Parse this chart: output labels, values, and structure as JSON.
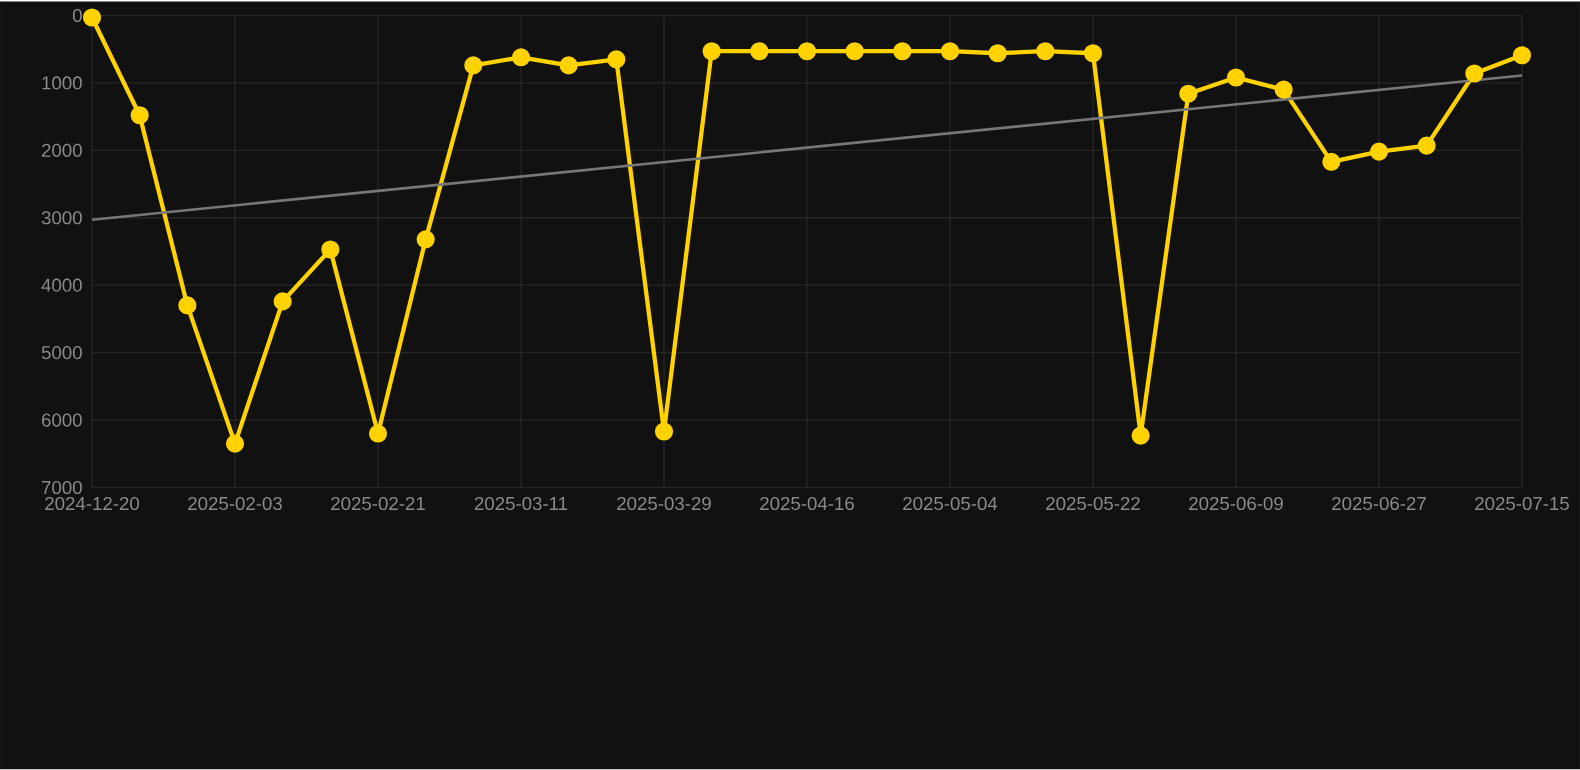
{
  "chart_data": {
    "type": "line",
    "categories": [
      "2024-12-20",
      null,
      null,
      "2025-02-03",
      null,
      null,
      "2025-02-21",
      null,
      null,
      "2025-03-11",
      null,
      null,
      "2025-03-29",
      null,
      null,
      "2025-04-16",
      null,
      null,
      "2025-05-04",
      null,
      null,
      "2025-05-22",
      null,
      null,
      "2025-06-09",
      null,
      null,
      "2025-06-27",
      null,
      null,
      "2025-07-15"
    ],
    "series": [
      {
        "color": "#ffd200",
        "values": [
          30,
          1480,
          4300,
          6350,
          4240,
          3470,
          6200,
          3320,
          740,
          620,
          740,
          650,
          6170,
          530,
          530,
          530,
          530,
          530,
          530,
          560,
          530,
          560,
          6230,
          1160,
          920,
          1100,
          2170,
          2020,
          1930,
          860,
          590
        ],
        "marker": "circle"
      },
      {
        "type": "line",
        "color": "#777777",
        "values": [
          3030,
          null,
          null,
          null,
          null,
          null,
          null,
          null,
          null,
          null,
          null,
          null,
          null,
          null,
          null,
          null,
          null,
          null,
          null,
          null,
          null,
          null,
          null,
          null,
          null,
          null,
          null,
          null,
          null,
          null,
          890
        ],
        "marker": "none"
      }
    ],
    "ylim": [
      7000,
      0
    ],
    "yticks": [
      0,
      1000,
      2000,
      3000,
      4000,
      5000,
      6000,
      7000
    ],
    "grid": true
  }
}
